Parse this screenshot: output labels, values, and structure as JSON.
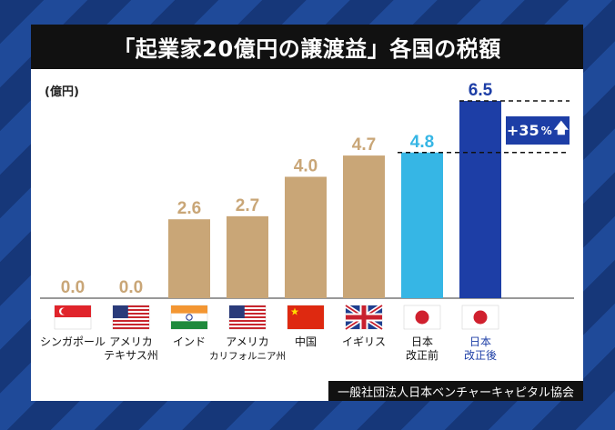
{
  "title": "「起業家20億円の譲渡益」各国の税額",
  "unit_label": "(億円)",
  "source": "一般社団法人日本ベンチャーキャピタル協会",
  "increase_badge": {
    "value": "+35",
    "pct": "%",
    "arrow": "🡅"
  },
  "colors": {
    "tan": "#c9a677",
    "light_blue": "#36b6e5",
    "navy": "#1d3ea6"
  },
  "chart_data": {
    "type": "bar",
    "categories": [
      {
        "label": [
          "シンガポール"
        ],
        "flag": "singapore-flag",
        "color": "tan"
      },
      {
        "label": [
          "アメリカ",
          "テキサス州"
        ],
        "flag": "usa-flag",
        "color": "tan"
      },
      {
        "label": [
          "インド"
        ],
        "flag": "india-flag",
        "color": "tan"
      },
      {
        "label": [
          "アメリカ",
          "カリフォルニア州"
        ],
        "flag": "usa-flag",
        "color": "tan"
      },
      {
        "label": [
          "中国"
        ],
        "flag": "china-flag",
        "color": "tan"
      },
      {
        "label": [
          "イギリス"
        ],
        "flag": "uk-flag",
        "color": "tan"
      },
      {
        "label": [
          "日本",
          "改正前"
        ],
        "flag": "japan-flag",
        "color": "light_blue"
      },
      {
        "label": [
          "日本",
          "改正後"
        ],
        "flag": "japan-flag",
        "color": "navy"
      }
    ],
    "values": [
      0.0,
      0.0,
      2.6,
      2.7,
      4.0,
      4.7,
      4.8,
      6.5
    ],
    "value_labels": [
      "0.0",
      "0.0",
      "2.6",
      "2.7",
      "4.0",
      "4.7",
      "4.8",
      "6.5"
    ],
    "ylim": [
      0,
      6.5
    ]
  }
}
